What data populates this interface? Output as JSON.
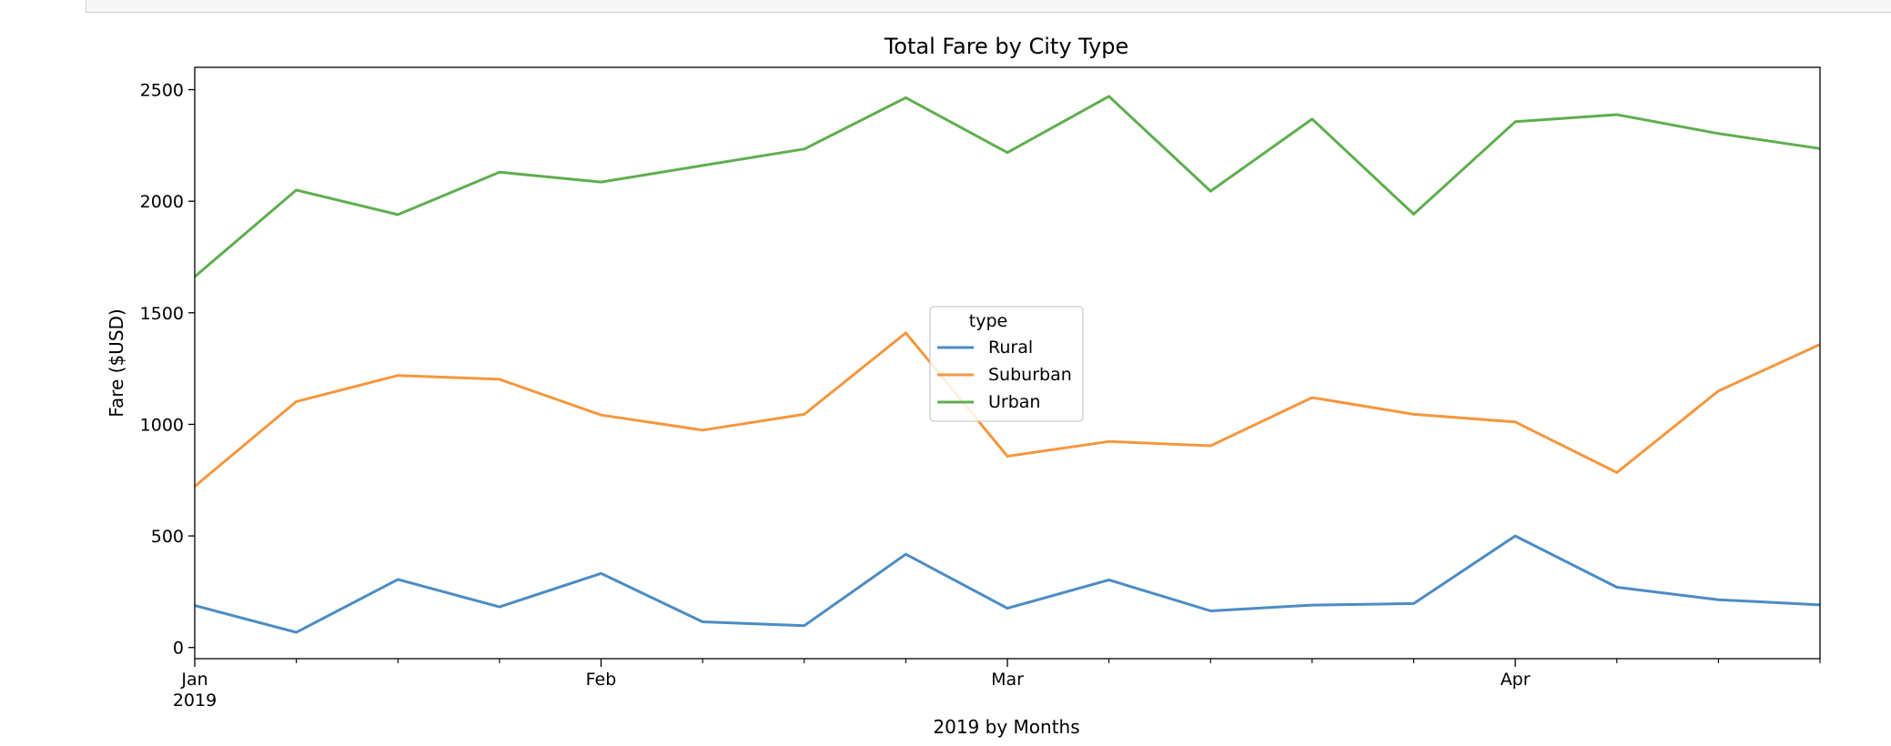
{
  "chart_data": {
    "type": "line",
    "title": "Total Fare by City Type",
    "xlabel": "2019 by Months",
    "ylabel": "Fare ($USD)",
    "ylim": [
      -50,
      2600
    ],
    "yticks": [
      0,
      500,
      1000,
      1500,
      2000,
      2500
    ],
    "x_index_range": [
      0,
      16
    ],
    "xticks": [
      {
        "index": 0,
        "label": "Jan",
        "sublabel": "2019"
      },
      {
        "index": 4,
        "label": "Feb",
        "sublabel": ""
      },
      {
        "index": 8,
        "label": "Mar",
        "sublabel": ""
      },
      {
        "index": 13,
        "label": "Apr",
        "sublabel": ""
      }
    ],
    "minor_ticks": [
      1,
      2,
      3,
      5,
      6,
      7,
      9,
      10,
      11,
      12,
      14,
      15,
      16
    ],
    "x": [
      "2019-01-06",
      "2019-01-13",
      "2019-01-20",
      "2019-01-27",
      "2019-02-03",
      "2019-02-10",
      "2019-02-17",
      "2019-02-24",
      "2019-03-03",
      "2019-03-10",
      "2019-03-17",
      "2019-03-24",
      "2019-03-31",
      "2019-04-07",
      "2019-04-14",
      "2019-04-21",
      "2019-04-28"
    ],
    "series": [
      {
        "name": "Rural",
        "color": "#4c8cc4",
        "values": [
          188,
          68,
          305,
          182,
          332,
          115,
          98,
          418,
          176,
          303,
          164,
          190,
          197,
          500,
          270,
          214,
          191
        ]
      },
      {
        "name": "Suburban",
        "color": "#f5973e",
        "values": [
          722,
          1102,
          1219,
          1202,
          1042,
          974,
          1045,
          1410,
          857,
          923,
          904,
          1120,
          1045,
          1011,
          784,
          1150,
          1358
        ]
      },
      {
        "name": "Urban",
        "color": "#5fae4f",
        "values": [
          1662,
          2050,
          1940,
          2130,
          2086,
          2160,
          2234,
          2464,
          2218,
          2470,
          2045,
          2368,
          1942,
          2356,
          2388,
          2303,
          2236
        ]
      }
    ],
    "legend": {
      "title": "type",
      "placement": "center"
    }
  }
}
